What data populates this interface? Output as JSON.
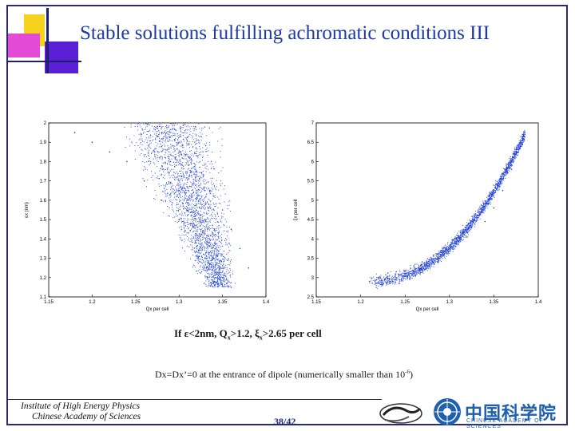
{
  "title": "Stable solutions fulfilling achromatic conditions III",
  "condition": {
    "prefix": "If ",
    "eps_symbol": "ε",
    "part1": "<2nm, Q",
    "sub_x1": "x",
    "part2": ">1.2, ",
    "xi_symbol": "ξ",
    "sub_x2": "x",
    "part3": ">2.65  per cell"
  },
  "note": "Dx=Dx’=0 at the entrance of dipole (numerically smaller than 10",
  "note_exp": "-6",
  "note_close": ")",
  "institute": {
    "line1": "Institute of High Energy Physics",
    "line2": "Chinese Academy of Sciences"
  },
  "page_number": "38/42",
  "cas_logo_text": "中国科学院",
  "cas_logo_sub": "CHINESE ACADEMY OF SCIENCES",
  "chart_data": [
    {
      "type": "scatter",
      "xlabel": "Qx per cell",
      "ylabel": "εx (nm)",
      "xlim": [
        1.15,
        1.4
      ],
      "ylim": [
        1.1,
        2
      ],
      "xticks": [
        "1.15",
        "1.2",
        "1.25",
        "1.3",
        "1.35",
        "1.4"
      ],
      "yticks": [
        "1.1",
        "1.2",
        "1.3",
        "1.4",
        "1.5",
        "1.6",
        "1.7",
        "1.8",
        "1.9",
        "2"
      ],
      "color": "#1f3fd6",
      "description_points": [
        [
          1.18,
          1.95
        ],
        [
          1.2,
          1.9
        ],
        [
          1.22,
          1.85
        ],
        [
          1.24,
          1.8
        ],
        [
          1.26,
          1.7
        ],
        [
          1.28,
          1.6
        ],
        [
          1.3,
          1.5
        ],
        [
          1.32,
          1.4
        ],
        [
          1.34,
          1.3
        ],
        [
          1.35,
          1.2
        ],
        [
          1.36,
          1.15
        ],
        [
          1.28,
          1.95
        ],
        [
          1.3,
          1.85
        ],
        [
          1.32,
          1.75
        ],
        [
          1.33,
          1.65
        ],
        [
          1.35,
          1.55
        ],
        [
          1.36,
          1.45
        ],
        [
          1.37,
          1.35
        ],
        [
          1.38,
          1.25
        ],
        [
          1.3,
          1.7
        ],
        [
          1.31,
          1.6
        ],
        [
          1.33,
          1.5
        ],
        [
          1.29,
          1.8
        ]
      ]
    },
    {
      "type": "scatter",
      "xlabel": "Qx per cell",
      "ylabel": "ξx per cell",
      "xlim": [
        1.15,
        1.4
      ],
      "ylim": [
        2.5,
        7
      ],
      "xticks": [
        "1.15",
        "1.2",
        "1.25",
        "1.3",
        "1.35",
        "1.4"
      ],
      "yticks": [
        "2.5",
        "3",
        "3.5",
        "4",
        "4.5",
        "5",
        "5.5",
        "6",
        "6.5",
        "7"
      ],
      "color": "#1f3fd6",
      "description_points": [
        [
          1.21,
          2.9
        ],
        [
          1.22,
          3.0
        ],
        [
          1.24,
          3.15
        ],
        [
          1.26,
          3.3
        ],
        [
          1.28,
          3.5
        ],
        [
          1.3,
          3.75
        ],
        [
          1.32,
          4.05
        ],
        [
          1.34,
          4.45
        ],
        [
          1.35,
          4.8
        ],
        [
          1.36,
          5.25
        ],
        [
          1.37,
          5.8
        ],
        [
          1.38,
          6.4
        ],
        [
          1.385,
          6.7
        ]
      ]
    }
  ]
}
